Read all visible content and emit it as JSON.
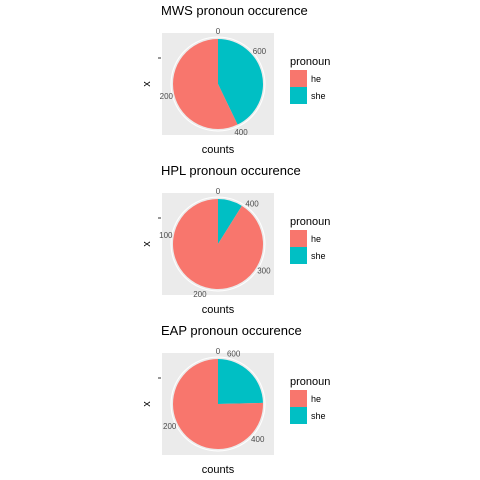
{
  "colors": {
    "he": "#F8766D",
    "she": "#00BFC4",
    "panel": "#EBEBEB",
    "grid": "#FFFFFF",
    "tick_text": "#4D4D4D"
  },
  "chart_data": [
    {
      "type": "pie",
      "title": "MWS pronoun occurence",
      "xlabel": "counts",
      "ylabel": "x",
      "legend_title": "pronoun",
      "legend_position": "right",
      "categories": [
        "he",
        "she"
      ],
      "values": [
        400,
        300
      ],
      "theta_ticks": [
        0,
        200,
        400,
        600
      ],
      "theta_tick_labels": [
        "0",
        "200",
        "400",
        "600"
      ],
      "y_tick_labels": [
        ""
      ]
    },
    {
      "type": "pie",
      "title": "HPL pronoun occurence",
      "xlabel": "counts",
      "ylabel": "x",
      "legend_title": "pronoun",
      "legend_position": "right",
      "categories": [
        "he",
        "she"
      ],
      "values": [
        410,
        40
      ],
      "theta_ticks": [
        0,
        100,
        200,
        300,
        400
      ],
      "theta_tick_labels": [
        "0",
        "100",
        "200",
        "300",
        "400"
      ],
      "y_tick_labels": [
        ""
      ]
    },
    {
      "type": "pie",
      "title": "EAP pronoun occurence",
      "xlabel": "counts",
      "ylabel": "x",
      "legend_title": "pronoun",
      "legend_position": "right",
      "categories": [
        "he",
        "she"
      ],
      "values": [
        475,
        155
      ],
      "theta_ticks": [
        0,
        200,
        400,
        600
      ],
      "theta_tick_labels": [
        "0",
        "200",
        "400",
        "600"
      ],
      "y_tick_labels": [
        ""
      ]
    }
  ]
}
